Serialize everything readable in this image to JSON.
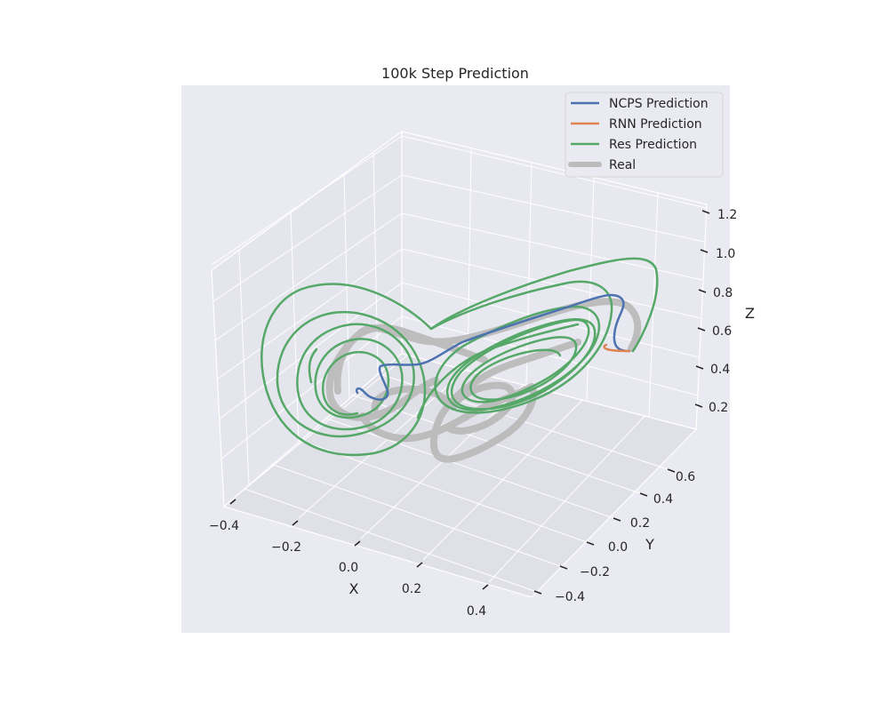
{
  "chart_data": {
    "type": "line",
    "projection": "3d",
    "title": "100k Step Prediction",
    "xlabel": "X",
    "ylabel": "Y",
    "zlabel": "Z",
    "xlim": [
      -0.45,
      0.5
    ],
    "ylim": [
      -0.5,
      0.75
    ],
    "zlim": [
      0.05,
      1.25
    ],
    "xticks": [
      -0.4,
      -0.2,
      0.0,
      0.2,
      0.4
    ],
    "xtick_labels": [
      "−0.4",
      "−0.2",
      "0.0",
      "0.2",
      "0.4"
    ],
    "yticks": [
      -0.4,
      -0.2,
      0.0,
      0.2,
      0.4,
      0.6
    ],
    "ytick_labels": [
      "−0.4",
      "−0.2",
      "0.0",
      "0.2",
      "0.4",
      "0.6"
    ],
    "zticks": [
      0.2,
      0.4,
      0.6,
      0.8,
      1.0,
      1.2
    ],
    "ztick_labels": [
      "0.2",
      "0.4",
      "0.6",
      "0.8",
      "1.0",
      "1.2"
    ],
    "grid": true,
    "legend_position": "top-right",
    "series": [
      {
        "name": "NCPS Prediction",
        "color": "#4c72b0",
        "x": [
          0.47,
          0.44,
          0.4,
          0.3,
          0.2,
          0.1,
          0.0,
          -0.04,
          -0.06,
          -0.08,
          -0.1,
          -0.12,
          -0.13,
          -0.14
        ],
        "y": [
          0.55,
          0.6,
          0.62,
          0.5,
          0.35,
          0.2,
          0.05,
          0.0,
          -0.05,
          -0.08,
          -0.05,
          -0.02,
          0.0,
          0.0
        ],
        "z": [
          0.55,
          0.62,
          0.78,
          0.76,
          0.7,
          0.64,
          0.58,
          0.56,
          0.5,
          0.45,
          0.42,
          0.44,
          0.47,
          0.45
        ]
      },
      {
        "name": "RNN Prediction",
        "color": "#dd8452",
        "x": [
          0.47,
          0.44,
          0.41,
          0.4,
          0.41
        ],
        "y": [
          0.55,
          0.54,
          0.53,
          0.54,
          0.55
        ],
        "z": [
          0.55,
          0.55,
          0.55,
          0.56,
          0.57
        ]
      },
      {
        "name": "Res Prediction",
        "color": "#55a868",
        "x": [
          -0.05,
          -0.1,
          -0.05,
          0.0
        ],
        "y": [
          0.0,
          0.05,
          0.1,
          0.05
        ],
        "z": [
          0.55,
          0.6,
          0.65,
          0.6
        ]
      },
      {
        "name": "Real",
        "color": "#bbbbbb",
        "x": [
          -0.2,
          -0.1,
          0.0,
          0.1,
          0.2,
          0.3,
          0.2,
          0.1
        ],
        "y": [
          0.0,
          0.1,
          0.15,
          0.1,
          0.0,
          -0.1,
          -0.15,
          -0.1
        ],
        "z": [
          0.45,
          0.5,
          0.45,
          0.35,
          0.3,
          0.35,
          0.4,
          0.45
        ]
      }
    ]
  }
}
